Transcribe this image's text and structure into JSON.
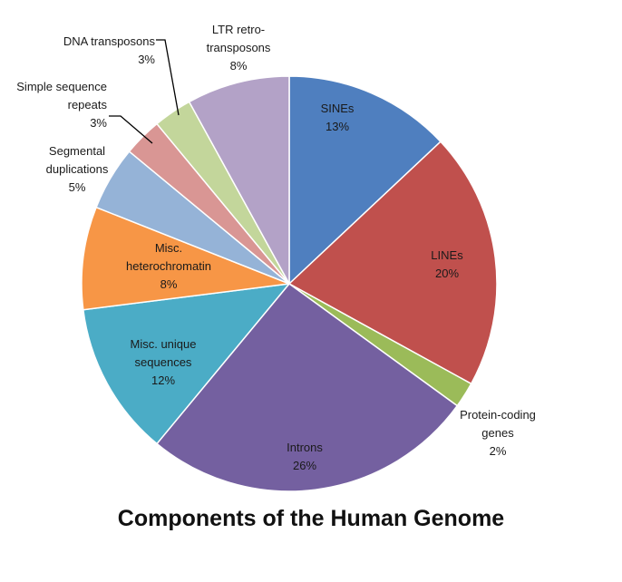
{
  "chart_data": {
    "type": "pie",
    "title": "Components of the Human Genome",
    "slices": [
      {
        "label": [
          "SINEs"
        ],
        "percent_text": "13%",
        "value": 13,
        "color": "#4F7FBF"
      },
      {
        "label": [
          "LINEs"
        ],
        "percent_text": "20%",
        "value": 20,
        "color": "#C0504D"
      },
      {
        "label": [
          "Protein-coding",
          "genes"
        ],
        "percent_text": "2%",
        "value": 2,
        "color": "#9BBB59"
      },
      {
        "label": [
          "Introns"
        ],
        "percent_text": "26%",
        "value": 26,
        "color": "#7460A0"
      },
      {
        "label": [
          "Misc. unique",
          "sequences"
        ],
        "percent_text": "12%",
        "value": 12,
        "color": "#4BACC6"
      },
      {
        "label": [
          "Misc.",
          "heterochromatin"
        ],
        "percent_text": "8%",
        "value": 8,
        "color": "#F79646"
      },
      {
        "label": [
          "Segmental",
          "duplications"
        ],
        "percent_text": "5%",
        "value": 5,
        "color": "#95B3D7"
      },
      {
        "label": [
          "Simple sequence",
          "repeats"
        ],
        "percent_text": "3%",
        "value": 3,
        "color": "#D99694"
      },
      {
        "label": [
          "DNA transposons"
        ],
        "percent_text": "3%",
        "value": 3,
        "color": "#C3D69B"
      },
      {
        "label": [
          "LTR retro-",
          "transposons"
        ],
        "percent_text": "8%",
        "value": 8,
        "color": "#B3A2C7"
      }
    ]
  }
}
